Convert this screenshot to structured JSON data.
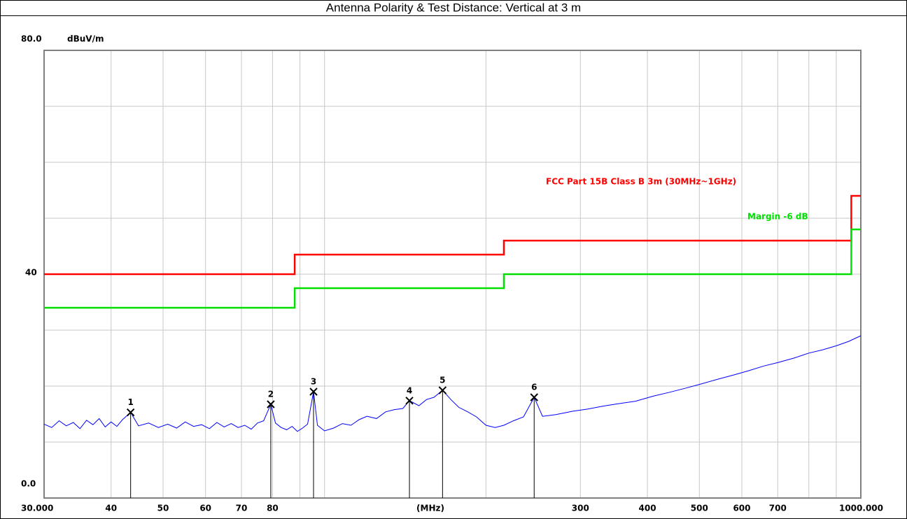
{
  "chart_data": {
    "type": "line",
    "title": "Antenna Polarity & Test Distance: Vertical at 3 m",
    "ylabel": "dBuV/m",
    "xlabel": "(MHz)",
    "xscale": "log",
    "xlim": [
      30,
      1000
    ],
    "ylim": [
      0,
      80
    ],
    "xticks": [
      {
        "value": 30,
        "label": "30.000"
      },
      40,
      50,
      60,
      70,
      80,
      300,
      400,
      500,
      600,
      700,
      {
        "value": 1000,
        "label": "1000.000"
      }
    ],
    "xminorticks": [
      90,
      100,
      200,
      800,
      900
    ],
    "yticks": [
      {
        "value": 0,
        "label": "0.0"
      },
      40,
      {
        "value": 80,
        "label": "80.0"
      }
    ],
    "yminorticks": [
      10,
      20,
      30,
      50,
      60,
      70
    ],
    "grid": true,
    "series": [
      {
        "name": "FCC Part 15B Class B 3m (30MHz~1GHz)",
        "color": "#ff0000",
        "x": [
          30,
          88,
          88,
          216,
          216,
          960,
          960,
          1000
        ],
        "values": [
          40,
          40,
          43.5,
          43.5,
          46,
          46,
          54,
          54
        ]
      },
      {
        "name": "Margin -6 dB",
        "color": "#00e000",
        "x": [
          30,
          88,
          88,
          216,
          216,
          960,
          960,
          1000
        ],
        "values": [
          34,
          34,
          37.5,
          37.5,
          40,
          40,
          48,
          48
        ]
      },
      {
        "color": "#0000ff",
        "x": [
          30,
          31,
          32,
          33,
          34,
          35,
          36,
          37,
          38,
          39,
          40,
          41,
          42,
          43.5,
          45,
          47,
          49,
          51,
          53,
          55,
          57,
          59,
          61,
          63,
          65,
          67,
          69,
          71,
          73,
          75,
          77,
          79.4,
          81,
          83,
          85,
          87,
          89,
          91,
          93,
          95.4,
          97,
          100,
          104,
          108,
          112,
          116,
          120,
          125,
          130,
          135,
          140,
          144,
          150,
          155,
          160,
          166,
          172,
          178,
          185,
          192,
          200,
          208,
          216,
          225,
          235,
          246,
          255,
          270,
          290,
          310,
          330,
          350,
          380,
          410,
          440,
          470,
          500,
          540,
          580,
          620,
          660,
          700,
          750,
          800,
          850,
          900,
          950,
          1000
        ],
        "values": [
          13.2,
          12.6,
          13.8,
          12.9,
          13.5,
          12.4,
          13.9,
          13.1,
          14.2,
          12.7,
          13.6,
          12.8,
          14.0,
          15.3,
          12.9,
          13.4,
          12.6,
          13.2,
          12.5,
          13.6,
          12.8,
          13.1,
          12.4,
          13.5,
          12.7,
          13.3,
          12.6,
          13.0,
          12.3,
          13.4,
          13.8,
          16.75,
          13.4,
          12.6,
          12.2,
          12.8,
          11.9,
          12.5,
          13.2,
          19.0,
          13.0,
          12.0,
          12.5,
          13.3,
          13.0,
          14.0,
          14.6,
          14.2,
          15.4,
          15.8,
          16.0,
          17.4,
          16.5,
          17.6,
          18.0,
          19.25,
          17.6,
          16.2,
          15.4,
          14.5,
          13.0,
          12.6,
          13.0,
          13.8,
          14.5,
          18.0,
          14.6,
          14.9,
          15.5,
          15.9,
          16.4,
          16.8,
          17.3,
          18.2,
          18.9,
          19.6,
          20.3,
          21.2,
          22.0,
          22.8,
          23.6,
          24.2,
          25.0,
          25.9,
          26.5,
          27.2,
          28.0,
          29.0
        ]
      }
    ],
    "markers": {
      "color": "#000000",
      "labels": [
        "1",
        "2",
        "3",
        "4",
        "5",
        "6"
      ],
      "x": [
        43.5,
        79.4,
        95.4,
        144,
        166,
        246
      ],
      "values": [
        15.3,
        16.75,
        19.0,
        17.4,
        19.25,
        18.0
      ]
    }
  }
}
